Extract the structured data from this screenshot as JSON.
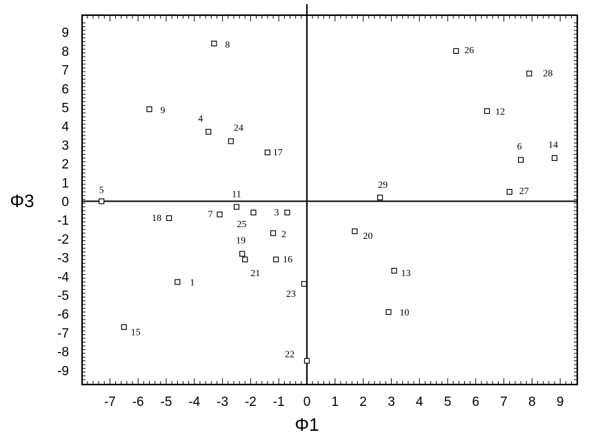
{
  "chart_data": {
    "type": "scatter",
    "xlabel": "Φ1",
    "ylabel": "Φ3",
    "xlim": [
      -8,
      10
    ],
    "ylim": [
      -9.5,
      9.5
    ],
    "xticks": [
      -7,
      -6,
      -5,
      -4,
      -3,
      -2,
      -1,
      0,
      1,
      2,
      3,
      4,
      5,
      6,
      7,
      8,
      9
    ],
    "yticks": [
      9,
      8,
      7,
      6,
      5,
      4,
      3,
      2,
      1,
      0,
      -1,
      -2,
      -3,
      -4,
      -5,
      -6,
      -7,
      -8,
      -9
    ],
    "marker": "open-square",
    "grid": false,
    "points": [
      {
        "label": "1",
        "x": -4.6,
        "y": -4.3
      },
      {
        "label": "2",
        "x": -1.2,
        "y": -1.7
      },
      {
        "label": "3",
        "x": -0.7,
        "y": -0.6
      },
      {
        "label": "4",
        "x": -3.5,
        "y": 3.7
      },
      {
        "label": "5",
        "x": -7.3,
        "y": 0.0
      },
      {
        "label": "6",
        "x": 7.6,
        "y": 2.2
      },
      {
        "label": "7",
        "x": -3.1,
        "y": -0.7
      },
      {
        "label": "8",
        "x": -3.3,
        "y": 8.4
      },
      {
        "label": "9",
        "x": -5.6,
        "y": 4.9
      },
      {
        "label": "10",
        "x": 2.9,
        "y": -5.9
      },
      {
        "label": "11",
        "x": -2.5,
        "y": -0.3
      },
      {
        "label": "12",
        "x": 6.4,
        "y": 4.8
      },
      {
        "label": "13",
        "x": 3.1,
        "y": -3.7
      },
      {
        "label": "14",
        "x": 8.8,
        "y": 2.3
      },
      {
        "label": "15",
        "x": -6.5,
        "y": -6.7
      },
      {
        "label": "16",
        "x": -1.1,
        "y": -3.1
      },
      {
        "label": "17",
        "x": -1.4,
        "y": 2.6
      },
      {
        "label": "18",
        "x": -4.9,
        "y": -0.9
      },
      {
        "label": "19",
        "x": -2.3,
        "y": -2.8
      },
      {
        "label": "20",
        "x": 1.7,
        "y": -1.6
      },
      {
        "label": "21",
        "x": -2.2,
        "y": -3.1
      },
      {
        "label": "22",
        "x": 0.0,
        "y": -8.5
      },
      {
        "label": "23",
        "x": -0.1,
        "y": -4.4
      },
      {
        "label": "24",
        "x": -2.7,
        "y": 3.2
      },
      {
        "label": "25",
        "x": -1.9,
        "y": -0.6
      },
      {
        "label": "26",
        "x": 5.3,
        "y": 8.0
      },
      {
        "label": "27",
        "x": 7.2,
        "y": 0.5
      },
      {
        "label": "28",
        "x": 7.9,
        "y": 6.8
      },
      {
        "label": "29",
        "x": 2.6,
        "y": 0.2
      }
    ]
  }
}
